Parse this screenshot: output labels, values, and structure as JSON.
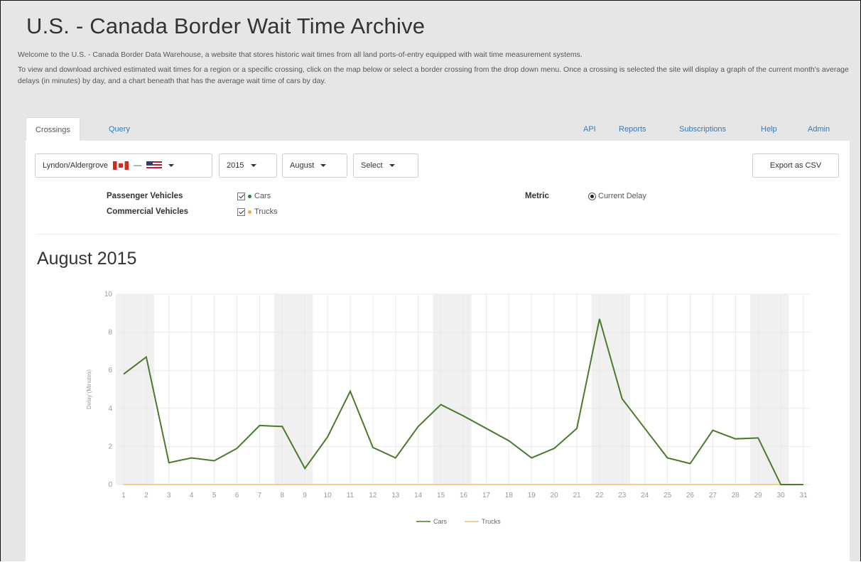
{
  "header": {
    "title": "U.S. - Canada Border Wait Time Archive",
    "intro_1": "Welcome to the U.S. - Canada Border Data Warehouse, a website that stores historic wait times from all land ports-of-entry equipped with wait time measurement systems.",
    "intro_2": "To view and download archived estimated wait times for a region or a specific crossing, click on the map below or select a border crossing from the drop down menu. Once a crossing is selected the site will display a graph of the current month's average delays (in minutes) by day, and a chart beneath that has the average wait time of cars by day."
  },
  "tabs": {
    "left": [
      "Crossings",
      "Query"
    ],
    "right": [
      "API",
      "Reports",
      "Subscriptions",
      "Help",
      "Admin"
    ],
    "active": "Crossings"
  },
  "toolbar": {
    "crossing": "Lyndon/Aldergrove",
    "dash": "—",
    "year": "2015",
    "month": "August",
    "select": "Select",
    "export": "Export as CSV"
  },
  "options": {
    "passenger_label": "Passenger Vehicles",
    "commercial_label": "Commercial Vehicles",
    "cars": "Cars",
    "trucks": "Trucks",
    "metric_label": "Metric",
    "metric_value": "Current Delay",
    "cars_color": "#2e7d32",
    "trucks_color": "#f0ad2e"
  },
  "chart_title": "August 2015",
  "chart_data": {
    "type": "line",
    "x": [
      1,
      2,
      3,
      4,
      5,
      6,
      7,
      8,
      9,
      10,
      11,
      12,
      13,
      14,
      15,
      16,
      17,
      18,
      19,
      20,
      21,
      22,
      23,
      24,
      25,
      26,
      27,
      28,
      29,
      30,
      31
    ],
    "series": [
      {
        "name": "Cars",
        "color": "#4a7a2a",
        "values": [
          5.8,
          6.7,
          1.15,
          1.4,
          1.25,
          1.9,
          3.1,
          3.05,
          0.85,
          2.5,
          4.9,
          1.95,
          1.4,
          3.05,
          4.2,
          3.6,
          2.95,
          2.3,
          1.4,
          1.9,
          2.95,
          8.7,
          4.5,
          2.95,
          1.4,
          1.1,
          2.85,
          2.4,
          2.45,
          0.0,
          0.0
        ]
      },
      {
        "name": "Trucks",
        "color": "#f0c060",
        "values": [
          0,
          0,
          0,
          0,
          0,
          0,
          0,
          0,
          0,
          0,
          0,
          0,
          0,
          0,
          0,
          0,
          0,
          0,
          0,
          0,
          0,
          0,
          0,
          0,
          0,
          0,
          0,
          0,
          0,
          0,
          0
        ]
      }
    ],
    "ylabel": "Delay (Minutes)",
    "ylim": [
      0,
      10
    ],
    "yticks": [
      0,
      2,
      4,
      6,
      8,
      10
    ],
    "weekend_bands": [
      [
        1,
        2
      ],
      [
        8,
        9
      ],
      [
        15,
        16
      ],
      [
        22,
        23
      ],
      [
        29,
        30
      ]
    ],
    "grid": true,
    "legend": "bottom"
  }
}
